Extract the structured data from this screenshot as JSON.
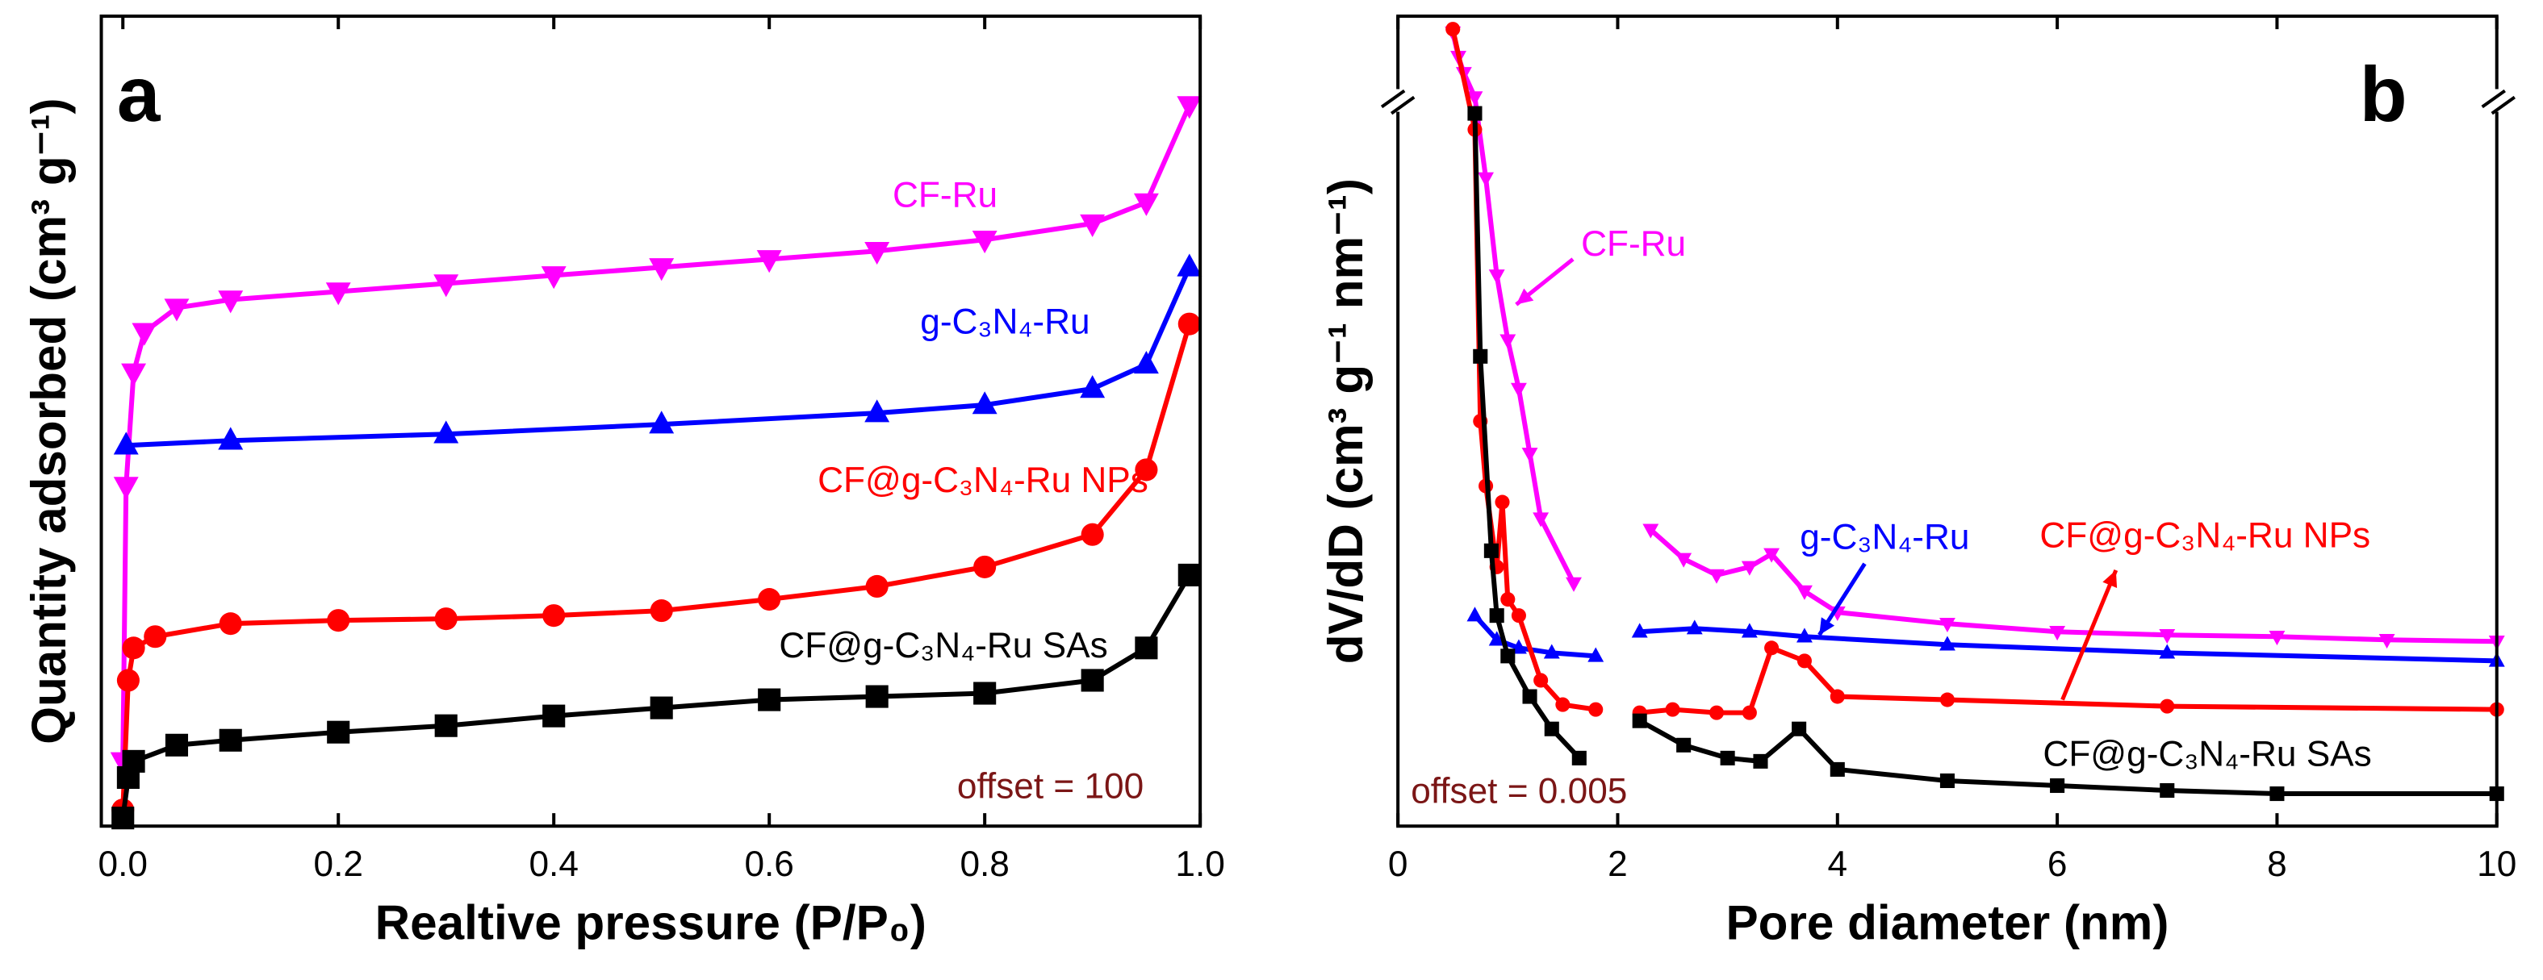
{
  "chart_data": [
    {
      "type": "line",
      "label": "a",
      "annotation": "offset = 100",
      "xlabel": "Realtive pressure (P/P₀)",
      "ylabel": "Quantity adsorbed (cm³ g⁻¹)",
      "xlim": [
        -0.02,
        1.0
      ],
      "ylim": [
        0,
        500
      ],
      "xticks": [
        {
          "value": 0,
          "label": "0.0"
        },
        0.2,
        0.4,
        0.6,
        0.8,
        {
          "value": 1,
          "label": "1.0"
        }
      ],
      "series": [
        {
          "name": "CF-Ru",
          "color": "#ff00ff",
          "marker": "triangle-down",
          "x": [
            0,
            0.003,
            0.01,
            0.02,
            0.05,
            0.1,
            0.2,
            0.3,
            0.4,
            0.5,
            0.6,
            0.7,
            0.8,
            0.9,
            0.95,
            0.99
          ],
          "values": [
            40,
            210,
            280,
            305,
            320,
            325,
            330,
            335,
            340,
            345,
            350,
            355,
            362,
            372,
            385,
            445
          ]
        },
        {
          "name": "g-C₃N₄-Ru",
          "color": "#0000ff",
          "marker": "triangle-up",
          "x": [
            0.003,
            0.1,
            0.3,
            0.5,
            0.7,
            0.8,
            0.9,
            0.95,
            0.99
          ],
          "values": [
            235,
            238,
            242,
            248,
            255,
            260,
            270,
            285,
            345
          ]
        },
        {
          "name": "CF@g-C₃N₄-Ru NPs",
          "color": "#ff0000",
          "marker": "circle",
          "x": [
            0,
            0.005,
            0.01,
            0.03,
            0.1,
            0.2,
            0.3,
            0.4,
            0.5,
            0.6,
            0.7,
            0.8,
            0.9,
            0.95,
            0.99
          ],
          "values": [
            10,
            90,
            110,
            117,
            125,
            127,
            128,
            130,
            133,
            140,
            148,
            160,
            180,
            220,
            310
          ]
        },
        {
          "name": "CF@g-C₃N₄-Ru SAs",
          "color": "#000000",
          "marker": "square",
          "x": [
            0,
            0.005,
            0.01,
            0.05,
            0.1,
            0.2,
            0.3,
            0.4,
            0.5,
            0.6,
            0.7,
            0.8,
            0.9,
            0.95,
            0.99
          ],
          "values": [
            5,
            30,
            40,
            50,
            53,
            58,
            62,
            68,
            73,
            78,
            80,
            82,
            90,
            110,
            155
          ]
        }
      ]
    },
    {
      "type": "line",
      "label": "b",
      "annotation": "offset = 0.005",
      "xlabel": "Pore diameter (nm)",
      "ylabel": "dV/dD (cm³ g⁻¹ nm⁻¹)",
      "xlim": [
        0,
        10
      ],
      "ylim": [
        0,
        500
      ],
      "xticks": [
        0,
        2,
        4,
        6,
        8,
        10
      ],
      "series": [
        {
          "name": "CF-Ru",
          "color": "#ff00ff",
          "marker": "triangle-down",
          "x": [
            0.5,
            0.55,
            0.6,
            0.7,
            0.8,
            0.9,
            1.0,
            1.1,
            1.2,
            1.3,
            1.6,
            1.9,
            2.3,
            2.6,
            2.9,
            3.2,
            3.4,
            3.7,
            4.0,
            5,
            6,
            7,
            8,
            9,
            10
          ],
          "values": [
            490,
            475,
            465,
            450,
            400,
            340,
            300,
            270,
            230,
            190,
            150,
            null,
            183,
            165,
            155,
            160,
            168,
            145,
            132,
            125,
            120,
            118,
            117,
            115,
            114
          ]
        },
        {
          "name": "g-C₃N₄-Ru",
          "color": "#0000ff",
          "marker": "triangle-up",
          "x": [
            0.7,
            0.9,
            1.1,
            1.4,
            1.8,
            2.0,
            2.2,
            2.7,
            3.2,
            3.7,
            5,
            7,
            10
          ],
          "values": [
            130,
            115,
            110,
            107,
            105,
            null,
            120,
            122,
            120,
            117,
            112,
            107,
            102
          ]
        },
        {
          "name": "CF@g-C₃N₄-Ru NPs",
          "color": "#ff0000",
          "marker": "circle",
          "x": [
            0.5,
            0.7,
            0.75,
            0.8,
            0.9,
            0.95,
            1.0,
            1.1,
            1.3,
            1.5,
            1.8,
            2.0,
            2.2,
            2.5,
            2.9,
            3.2,
            3.4,
            3.7,
            4.0,
            5,
            7,
            10
          ],
          "values": [
            492,
            430,
            250,
            210,
            160,
            200,
            140,
            130,
            90,
            75,
            72,
            null,
            70,
            72,
            70,
            70,
            110,
            102,
            80,
            78,
            74,
            72
          ]
        },
        {
          "name": "CF@g-C₃N₄-Ru SAs",
          "color": "#000000",
          "marker": "square",
          "x": [
            0.7,
            0.75,
            0.85,
            0.9,
            1.0,
            1.2,
            1.4,
            1.65,
            1.9,
            2.2,
            2.6,
            3.0,
            3.3,
            3.65,
            4.0,
            5,
            6,
            7,
            8,
            10
          ],
          "values": [
            440,
            290,
            170,
            130,
            105,
            80,
            60,
            42,
            null,
            65,
            50,
            42,
            40,
            60,
            35,
            28,
            25,
            22,
            20,
            20
          ]
        }
      ]
    }
  ]
}
